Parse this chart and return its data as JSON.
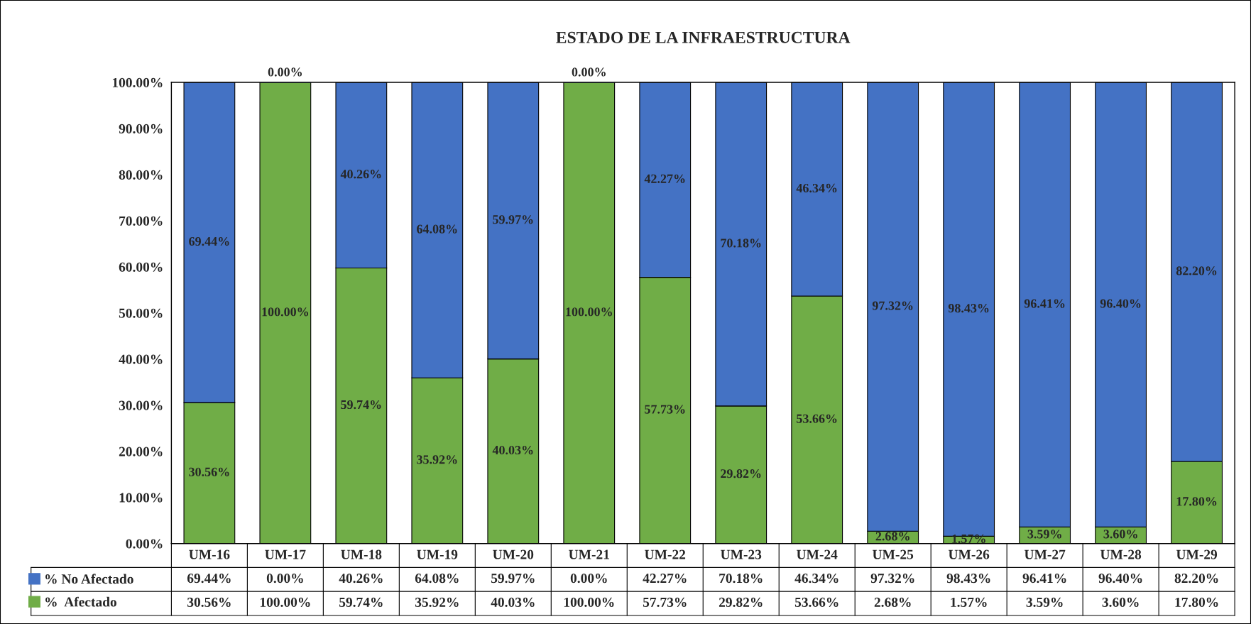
{
  "chart_data": {
    "type": "bar",
    "title": "ESTADO DE LA INFRAESTRUCTURA",
    "stacked": true,
    "categories": [
      "UM-16",
      "UM-17",
      "UM-18",
      "UM-19",
      "UM-20",
      "UM-21",
      "UM-22",
      "UM-23",
      "UM-24",
      "UM-25",
      "UM-26",
      "UM-27",
      "UM-28",
      "UM-29"
    ],
    "series": [
      {
        "name": "%  Afectado",
        "color": "#70ad47",
        "values": [
          30.56,
          100.0,
          59.74,
          35.92,
          40.03,
          100.0,
          57.73,
          29.82,
          53.66,
          2.68,
          1.57,
          3.59,
          3.6,
          17.8
        ],
        "value_labels": [
          "30.56%",
          "100.00%",
          "59.74%",
          "35.92%",
          "40.03%",
          "100.00%",
          "57.73%",
          "29.82%",
          "53.66%",
          "2.68%",
          "1.57%",
          "3.59%",
          "3.60%",
          "17.80%"
        ]
      },
      {
        "name": "% No Afectado",
        "color": "#4472c4",
        "values": [
          69.44,
          0.0,
          40.26,
          64.08,
          59.97,
          0.0,
          42.27,
          70.18,
          46.34,
          97.32,
          98.43,
          96.41,
          96.4,
          82.2
        ],
        "value_labels": [
          "69.44%",
          "0.00%",
          "40.26%",
          "64.08%",
          "59.97%",
          "0.00%",
          "42.27%",
          "70.18%",
          "46.34%",
          "97.32%",
          "98.43%",
          "96.41%",
          "96.40%",
          "82.20%"
        ]
      }
    ],
    "ylim": [
      0,
      100
    ],
    "yticks": [
      {
        "value": 0,
        "label": "0.00%"
      },
      {
        "value": 10,
        "label": "10.00%"
      },
      {
        "value": 20,
        "label": "20.00%"
      },
      {
        "value": 30,
        "label": "30.00%"
      },
      {
        "value": 40,
        "label": "40.00%"
      },
      {
        "value": 50,
        "label": "50.00%"
      },
      {
        "value": 60,
        "label": "60.00%"
      },
      {
        "value": 70,
        "label": "70.00%"
      },
      {
        "value": 80,
        "label": "80.00%"
      },
      {
        "value": 90,
        "label": "90.00%"
      },
      {
        "value": 100,
        "label": "100.00%"
      }
    ],
    "grid": false,
    "legend": "bottom"
  }
}
